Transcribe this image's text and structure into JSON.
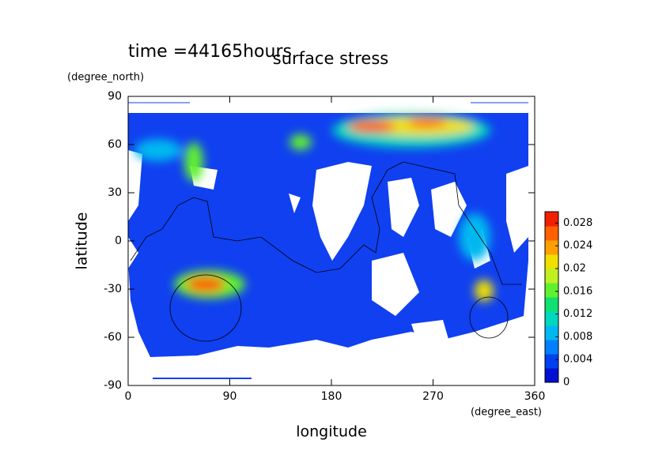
{
  "chart_data": {
    "type": "contour",
    "title": "surface stress",
    "time_label": "time =44165hours",
    "x_label": "longitude",
    "x_unit": "(degree_east)",
    "y_label": "latitude",
    "y_unit": "(degree_north)",
    "xlim": [
      0,
      360
    ],
    "xticks": [
      0,
      90,
      180,
      270,
      360
    ],
    "ylim": [
      -90,
      90
    ],
    "yticks": [
      90,
      60,
      30,
      0,
      -30,
      -60,
      -90
    ],
    "colorbar": {
      "lim": [
        0,
        0.03
      ],
      "ticks": [
        0.028,
        0.024,
        0.02,
        0.016,
        0.012,
        0.008,
        0.004,
        0
      ],
      "colors": [
        "#0010d0",
        "#0040f0",
        "#0080ff",
        "#00b8f0",
        "#00d8c0",
        "#10e070",
        "#60f030",
        "#c0f020",
        "#f0e000",
        "#ffa000",
        "#ff6000",
        "#f02000"
      ]
    }
  }
}
